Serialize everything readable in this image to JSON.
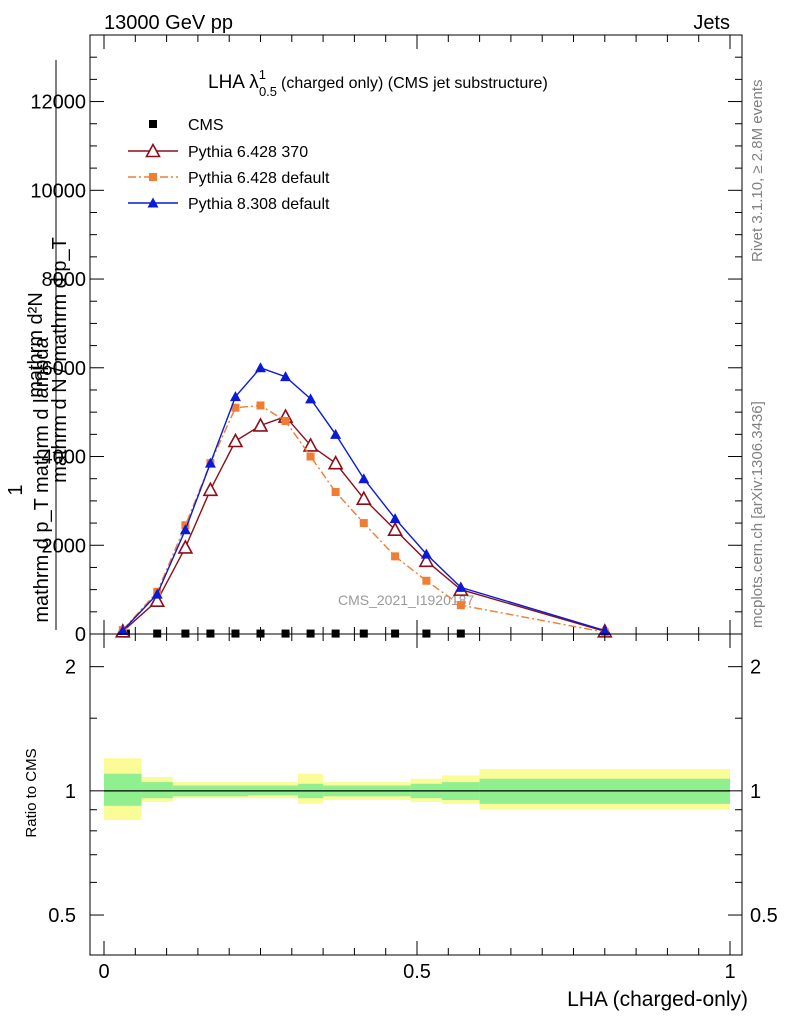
{
  "header": {
    "left": "13000 GeV pp",
    "right": "Jets"
  },
  "side_labels": {
    "rivet": "Rivet 3.1.10, ≥ 2.8M events",
    "mcplots": "mcplots.cern.ch [arXiv:1306.3436]"
  },
  "watermark": "CMS_2021_I1920187",
  "chart_data": [
    {
      "type": "line",
      "title": "LHA λ",
      "title_sup": "1",
      "title_sub": "0.5",
      "title_rest": "(charged only) (CMS jet substructure)",
      "ylabel_lines": [
        "mathrm d",
        "mathrm d",
        "mathrm d N / mathrm d p",
        "1"
      ],
      "ylabel_text": {
        "numer_top": "mathrm d²N",
        "numer_bottom": "mathrm d p_T mathrm d lambda",
        "prefix": "1",
        "denom": "mathrm d N / mathrm d p_T"
      },
      "xlim": [
        0,
        1
      ],
      "ylim": [
        0,
        13500
      ],
      "yticks": [
        0,
        2000,
        4000,
        6000,
        8000,
        10000,
        12000
      ],
      "ytick_labels": [
        "0",
        "2000",
        "4000",
        "6000",
        "8000",
        "10000",
        "12000"
      ],
      "legend_placement": "top-left",
      "series": [
        {
          "name": "CMS",
          "color": "#000000",
          "marker": "square",
          "line": "none",
          "x": [
            0.035,
            0.085,
            0.13,
            0.17,
            0.21,
            0.25,
            0.29,
            0.33,
            0.37,
            0.415,
            0.465,
            0.515,
            0.57
          ],
          "y": [
            10,
            10,
            10,
            10,
            10,
            10,
            10,
            10,
            10,
            10,
            10,
            10,
            10
          ]
        },
        {
          "name": "Pythia 6.428 370",
          "color": "#8b0e1a",
          "marker": "open-triangle",
          "line": "solid",
          "x": [
            0.03,
            0.085,
            0.13,
            0.17,
            0.21,
            0.25,
            0.29,
            0.33,
            0.37,
            0.415,
            0.465,
            0.515,
            0.57,
            0.8
          ],
          "y": [
            60,
            750,
            1950,
            3250,
            4350,
            4700,
            4900,
            4250,
            3850,
            3050,
            2350,
            1650,
            1000,
            60
          ]
        },
        {
          "name": "Pythia 6.428 default",
          "color": "#f07d32",
          "marker": "square",
          "line": "dashdot",
          "x": [
            0.03,
            0.085,
            0.13,
            0.17,
            0.21,
            0.25,
            0.29,
            0.33,
            0.37,
            0.415,
            0.465,
            0.515,
            0.57,
            0.8
          ],
          "y": [
            90,
            950,
            2450,
            3850,
            5100,
            5150,
            4800,
            4000,
            3200,
            2500,
            1750,
            1200,
            650,
            40
          ]
        },
        {
          "name": "Pythia 8.308 default",
          "color": "#0a1bd6",
          "marker": "filled-triangle",
          "line": "solid",
          "x": [
            0.03,
            0.085,
            0.13,
            0.17,
            0.21,
            0.25,
            0.29,
            0.33,
            0.37,
            0.415,
            0.465,
            0.515,
            0.57,
            0.8
          ],
          "y": [
            80,
            900,
            2350,
            3850,
            5350,
            6000,
            5800,
            5300,
            4500,
            3500,
            2600,
            1800,
            1050,
            80
          ]
        }
      ]
    },
    {
      "type": "area",
      "ylabel": "Ratio to CMS",
      "xlabel": "LHA (charged-only)",
      "xlim": [
        0,
        1
      ],
      "ylim": [
        0.4,
        2.4
      ],
      "log_y": true,
      "yticks": [
        0.5,
        1,
        2
      ],
      "ytick_labels": [
        "0.5",
        "1",
        "2"
      ],
      "xticks": [
        0,
        0.5,
        1
      ],
      "xtick_labels": [
        "0",
        "0.5",
        "1"
      ],
      "reference_line": 1,
      "band_colors": {
        "stat": "#90f090",
        "total": "#fbfb98"
      },
      "bins": [
        {
          "lo": 0.0,
          "hi": 0.06,
          "stat": [
            0.92,
            1.1
          ],
          "total": [
            0.85,
            1.2
          ]
        },
        {
          "lo": 0.06,
          "hi": 0.11,
          "stat": [
            0.96,
            1.05
          ],
          "total": [
            0.94,
            1.08
          ]
        },
        {
          "lo": 0.11,
          "hi": 0.23,
          "stat": [
            0.97,
            1.03
          ],
          "total": [
            0.96,
            1.05
          ]
        },
        {
          "lo": 0.23,
          "hi": 0.31,
          "stat": [
            0.975,
            1.03
          ],
          "total": [
            0.96,
            1.05
          ]
        },
        {
          "lo": 0.31,
          "hi": 0.35,
          "stat": [
            0.96,
            1.04
          ],
          "total": [
            0.93,
            1.1
          ]
        },
        {
          "lo": 0.35,
          "hi": 0.49,
          "stat": [
            0.97,
            1.03
          ],
          "total": [
            0.95,
            1.05
          ]
        },
        {
          "lo": 0.49,
          "hi": 0.54,
          "stat": [
            0.96,
            1.04
          ],
          "total": [
            0.94,
            1.07
          ]
        },
        {
          "lo": 0.54,
          "hi": 0.6,
          "stat": [
            0.95,
            1.05
          ],
          "total": [
            0.93,
            1.09
          ]
        },
        {
          "lo": 0.6,
          "hi": 1.0,
          "stat": [
            0.93,
            1.07
          ],
          "total": [
            0.9,
            1.13
          ]
        }
      ]
    }
  ]
}
